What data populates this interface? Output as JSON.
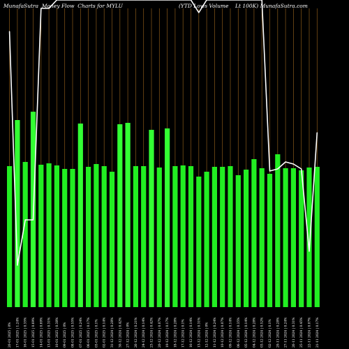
{
  "header": {
    "title_left": "MunafaSutra  Money Flow  Charts for MYLU",
    "title_right": "(YTD Lows Volume    Lt 100K) MunafaSutra.com"
  },
  "colors": {
    "background": "#000000",
    "bar": "#22ee22",
    "bar_volume": "#33ff33",
    "grid": "#8a5a1a",
    "line": "#ffffff"
  },
  "chart_data": {
    "type": "bar",
    "title": "MunafaSutra  Money Flow  Charts for MYLU",
    "subtitle": "(YTD Lows Volume    Lt 100K) MunafaSutra.com",
    "categories": [
      "Mon 20 Jan 2025",
      "Fri 17 Jan 2025",
      "Thu 16 Jan 2025",
      "Wed 15 Jan 2025",
      "Tue 14 Jan 2025",
      "Mon 13 Jan 2025",
      "Fri 10 Jan 2025",
      "Thu 09 Jan 2025",
      "Wed 08 Jan 2025",
      "Tue 07 Jan 2025",
      "Mon 06 Jan 2025",
      "Fri 03 Jan 2025",
      "Thu 02 Jan 2025",
      "Tue 31 Dec 2024",
      "Mon 30 Dec 2024",
      "Fri 27 Dec 2024",
      "Thu 26 Dec 2024",
      "Tue 24 Dec 2024",
      "Mon 23 Dec 2024",
      "Fri 20 Dec 2024",
      "Thu 19 Dec 2024",
      "Wed 18 Dec 2024",
      "Tue 17 Dec 2024",
      "Mon 16 Dec 2024",
      "Fri 13 Dec 2024",
      "Thu 12 Dec 2024",
      "Wed 11 Dec 2024",
      "Tue 10 Dec 2024",
      "Mon 09 Dec 2024",
      "Fri 06 Dec 2024",
      "Thu 05 Dec 2024",
      "Wed 04 Dec 2024",
      "Tue 03 Dec 2024",
      "Mon 02 Dec 2024",
      "Fri 29 Nov 2024",
      "Wed 27 Nov 2024",
      "Tue 26 Nov 2024",
      "Mon 25 Nov 2024",
      "Fri 22 Nov 2024",
      "Thu 21 Nov 2024"
    ],
    "x_tick_labels": [
      "20-01 2025 | 0%",
      "17-01 2025 | 1.24%",
      "16-01 2025 | 0.35%",
      "15-01 2025 | 0.69%",
      "14-01 2025 | 0.69%",
      "13-01 2025 | 0.31%",
      "10-01 2025 | 0.38%",
      "09-01 2025 | 0%",
      "08-01 2025 | 0.55%",
      "07-01 2025 | 0.24%",
      "06-01 2025 | 0.17%",
      "03-01 2025 | 0.1%",
      "02-01 2025 | 0.14%",
      "31-12 2024 | 0.28%",
      "30-12 2024 | 0.42%",
      "27-12 2024 | 0%",
      "26-12 2024 | 0.21%",
      "24-12 2024 | 0.14%",
      "23-12 2024 | 0.42%",
      "20-12 2024 | 0.07%",
      "19-12 2024 | 0.17%",
      "18-12 2024 | 0.28%",
      "17-12 2024 | 0.1%",
      "16-12 2024 | 0.14%",
      "13-12 2024 | 0.31%",
      "12-12 2024 | 0%",
      "11-12 2024 | 0.24%",
      "10-12 2024 | 0.07%",
      "09-12 2024 | 0.14%",
      "06-12 2024 | 0.35%",
      "05-12 2024 | 0.14%",
      "04-12 2024 | 0.28%",
      "03-12 2024 | 0.52%",
      "02-12 2024 | 0.1%",
      "29-11 2024 | 0.28%",
      "27-11 2024 | 0.24%",
      "26-11 2024 | 0.31%",
      "25-11 2024 | 0.45%",
      "22-11 2024 | 0.07%",
      "21-11 2024 | 0.17%"
    ],
    "series": [
      {
        "values": [
          202,
          268,
          208,
          280,
          204,
          206,
          203,
          198,
          198,
          263,
          201,
          205,
          202,
          194,
          262,
          264,
          202,
          202,
          254,
          200,
          256,
          202,
          203,
          202,
          187,
          194,
          201,
          201,
          202,
          189,
          197,
          212,
          199,
          191,
          219,
          199,
          199,
          196,
          200,
          201
        ]
      },
      {
        "values": [
          395,
          60,
          125,
          125,
          428,
          428,
          440,
          440,
          440,
          440,
          440,
          440,
          440,
          440,
          440,
          440,
          440,
          440,
          440,
          440,
          440,
          440,
          440,
          440,
          422,
          440,
          440,
          440,
          440,
          440,
          440,
          440,
          440,
          195,
          198,
          208,
          205,
          198,
          80,
          250
        ]
      }
    ],
    "ylim": [
      0,
      440
    ],
    "grid": true
  }
}
